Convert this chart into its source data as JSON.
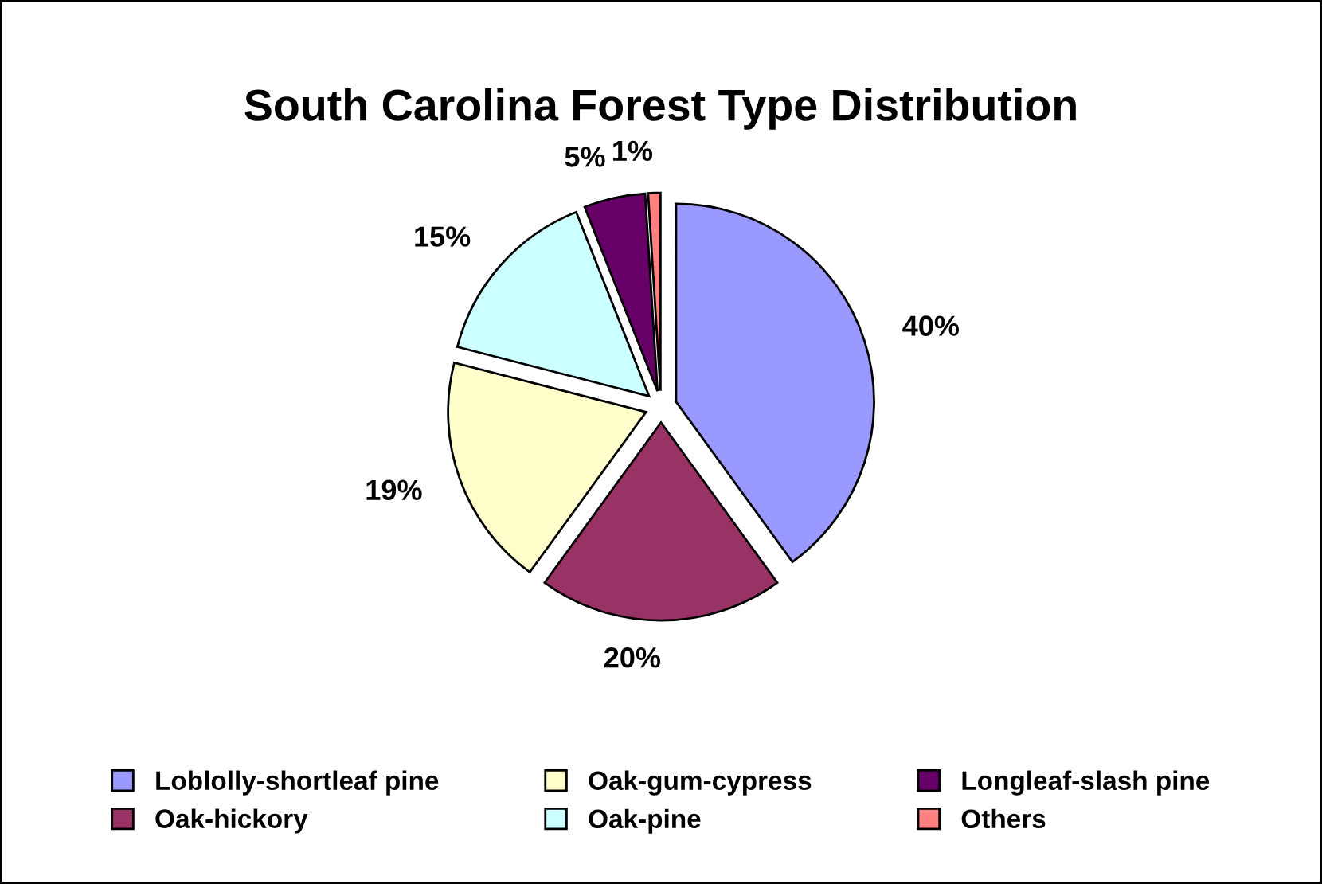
{
  "chart_data": {
    "type": "pie",
    "title": "South Carolina Forest Type Distribution",
    "categories": [
      "Loblolly-shortleaf pine",
      "Oak-hickory",
      "Oak-gum-cypress",
      "Oak-pine",
      "Longleaf-slash pine",
      "Others"
    ],
    "values": [
      40,
      20,
      19,
      15,
      5,
      1
    ],
    "colors": [
      "#9999ff",
      "#993366",
      "#ffffcc",
      "#ccffff",
      "#660066",
      "#ff8080"
    ],
    "value_labels": [
      "40%",
      "20%",
      "19%",
      "15%",
      "5%",
      "1%"
    ],
    "legend": "bottom"
  }
}
